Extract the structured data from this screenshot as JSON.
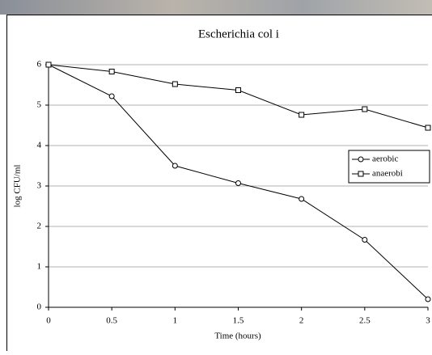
{
  "chart_data": {
    "type": "line",
    "title": "Escherichia col i",
    "x_label": "Time (hours)",
    "y_label": "log CFU/ml",
    "x": [
      0,
      0.5,
      1,
      1.5,
      2,
      2.5,
      3
    ],
    "series": [
      {
        "name": "aerobic",
        "color": "#000000",
        "marker": "circle",
        "values": [
          6,
          5.22,
          3.5,
          3.07,
          2.68,
          1.67,
          0.2
        ]
      },
      {
        "name": "anaerobi",
        "color": "#000000",
        "marker": "square",
        "values": [
          6,
          5.83,
          5.52,
          5.37,
          4.76,
          4.9,
          4.44
        ]
      }
    ],
    "xlim": [
      0,
      3
    ],
    "xticks": [
      0,
      0.5,
      1,
      1.5,
      2,
      2.5,
      3
    ],
    "ylim": [
      0,
      6
    ],
    "yticks": [
      0,
      1,
      2,
      3,
      4,
      5,
      6
    ],
    "grid": true,
    "legend": "right"
  }
}
